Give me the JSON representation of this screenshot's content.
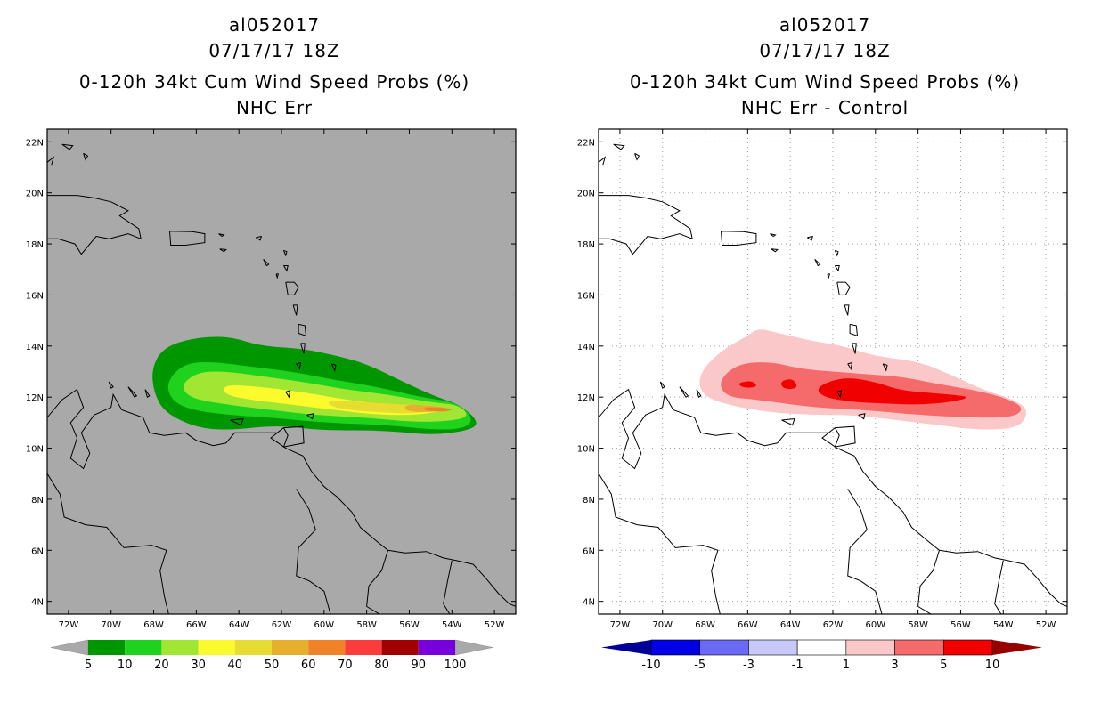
{
  "charts": [
    {
      "id": "left",
      "title_line1": "al052017",
      "title_line2": "07/17/17 18Z",
      "title_line3": "0-120h 34kt Cum Wind Speed Probs (%)",
      "title_line4": "NHC Err",
      "background": "#a9a9a9",
      "gridlines": false
    },
    {
      "id": "right",
      "title_line1": "al052017",
      "title_line2": "07/17/17 18Z",
      "title_line3": "0-120h 34kt Cum Wind Speed Probs (%)",
      "title_line4": "NHC Err - Control",
      "background": "#ffffff",
      "gridlines": true
    }
  ],
  "chart_data": [
    {
      "type": "heatmap",
      "title": "0-120h 34kt Cum Wind Speed Probs (%) NHC Err",
      "xlim": [
        -73,
        -51
      ],
      "ylim": [
        3.5,
        22.5
      ],
      "x_ticks": [
        -72,
        -70,
        -68,
        -66,
        -64,
        -62,
        -60,
        -58,
        -56,
        -54,
        -52
      ],
      "x_tick_labels": [
        "72W",
        "70W",
        "68W",
        "66W",
        "64W",
        "62W",
        "60W",
        "58W",
        "56W",
        "54W",
        "52W"
      ],
      "y_ticks": [
        4,
        6,
        8,
        10,
        12,
        14,
        16,
        18,
        20,
        22
      ],
      "y_tick_labels": [
        "4N",
        "6N",
        "8N",
        "10N",
        "12N",
        "14N",
        "16N",
        "18N",
        "20N",
        "22N"
      ],
      "colorbar": {
        "labels": [
          "5",
          "10",
          "20",
          "30",
          "40",
          "50",
          "60",
          "70",
          "80",
          "90",
          "100"
        ],
        "colors": [
          "#009600",
          "#1ed21e",
          "#a0e632",
          "#fafa2d",
          "#e6dc32",
          "#e6af2d",
          "#f08228",
          "#fa3c3c",
          "#a00000",
          "#7800dc"
        ],
        "extend_color": "#a9a9a9"
      },
      "contours": [
        {
          "level": "5-10",
          "color": "#009600",
          "points": [
            [
              -68.1,
              13.1
            ],
            [
              -67.6,
              13.9
            ],
            [
              -66.3,
              14.3
            ],
            [
              -64.5,
              14.4
            ],
            [
              -63.0,
              14.0
            ],
            [
              -61.0,
              13.9
            ],
            [
              -59.3,
              13.6
            ],
            [
              -58.0,
              13.3
            ],
            [
              -56.3,
              12.6
            ],
            [
              -54.7,
              12.0
            ],
            [
              -53.6,
              11.7
            ],
            [
              -52.7,
              11.0
            ],
            [
              -53.2,
              10.7
            ],
            [
              -54.9,
              10.5
            ],
            [
              -57.2,
              10.7
            ],
            [
              -60.2,
              10.7
            ],
            [
              -62.2,
              10.9
            ],
            [
              -64.5,
              10.7
            ],
            [
              -66.0,
              10.8
            ],
            [
              -67.5,
              11.4
            ],
            [
              -68.0,
              12.2
            ]
          ]
        },
        {
          "level": "10-20",
          "color": "#1ed21e",
          "points": [
            [
              -67.4,
              12.6
            ],
            [
              -66.6,
              13.3
            ],
            [
              -65.4,
              13.4
            ],
            [
              -63.5,
              13.2
            ],
            [
              -61.5,
              13.0
            ],
            [
              -59.7,
              12.7
            ],
            [
              -57.5,
              12.4
            ],
            [
              -55.5,
              12.0
            ],
            [
              -53.8,
              11.8
            ],
            [
              -53.0,
              11.2
            ],
            [
              -53.3,
              10.8
            ],
            [
              -54.5,
              10.7
            ],
            [
              -57.0,
              10.9
            ],
            [
              -60.0,
              11.0
            ],
            [
              -62.5,
              11.2
            ],
            [
              -64.5,
              11.3
            ],
            [
              -66.3,
              11.5
            ],
            [
              -67.2,
              11.9
            ]
          ]
        },
        {
          "level": "20-30",
          "color": "#a0e632",
          "points": [
            [
              -66.6,
              12.6
            ],
            [
              -65.8,
              13.0
            ],
            [
              -64.5,
              13.0
            ],
            [
              -62.8,
              12.8
            ],
            [
              -61.0,
              12.6
            ],
            [
              -59.0,
              12.3
            ],
            [
              -57.0,
              12.1
            ],
            [
              -55.0,
              11.8
            ],
            [
              -53.7,
              11.7
            ],
            [
              -53.2,
              11.3
            ],
            [
              -53.7,
              11.1
            ],
            [
              -55.5,
              11.0
            ],
            [
              -58.0,
              11.2
            ],
            [
              -60.5,
              11.3
            ],
            [
              -62.5,
              11.5
            ],
            [
              -64.5,
              11.7
            ],
            [
              -66.0,
              11.9
            ],
            [
              -66.6,
              12.2
            ]
          ]
        },
        {
          "level": "30-40",
          "color": "#fafa2d",
          "points": [
            [
              -64.7,
              12.5
            ],
            [
              -63.0,
              12.4
            ],
            [
              -61.0,
              12.2
            ],
            [
              -59.0,
              11.9
            ],
            [
              -57.0,
              11.7
            ],
            [
              -55.5,
              11.6
            ],
            [
              -54.0,
              11.55
            ],
            [
              -55.5,
              11.3
            ],
            [
              -57.5,
              11.3
            ],
            [
              -59.5,
              11.5
            ],
            [
              -61.5,
              11.7
            ],
            [
              -63.5,
              11.9
            ],
            [
              -64.7,
              12.1
            ]
          ]
        },
        {
          "level": "40-50",
          "color": "#e6dc32",
          "points": [
            [
              -60.0,
              11.9
            ],
            [
              -58.0,
              11.8
            ],
            [
              -56.0,
              11.7
            ],
            [
              -54.2,
              11.6
            ],
            [
              -55.5,
              11.35
            ],
            [
              -57.5,
              11.4
            ],
            [
              -59.5,
              11.55
            ]
          ]
        },
        {
          "level": "50-60",
          "color": "#e6af2d",
          "points": [
            [
              -56.2,
              11.72
            ],
            [
              -55.0,
              11.66
            ],
            [
              -53.9,
              11.55
            ],
            [
              -55.0,
              11.4
            ],
            [
              -56.2,
              11.45
            ]
          ]
        },
        {
          "level": "60-70",
          "color": "#f08228",
          "points": [
            [
              -55.3,
              11.62
            ],
            [
              -54.3,
              11.58
            ],
            [
              -53.9,
              11.5
            ],
            [
              -54.5,
              11.42
            ],
            [
              -55.3,
              11.48
            ]
          ]
        }
      ]
    },
    {
      "type": "heatmap",
      "title": "0-120h 34kt Cum Wind Speed Probs (%) NHC Err - Control",
      "xlim": [
        -73,
        -51
      ],
      "ylim": [
        3.5,
        22.5
      ],
      "x_ticks": [
        -72,
        -70,
        -68,
        -66,
        -64,
        -62,
        -60,
        -58,
        -56,
        -54,
        -52
      ],
      "x_tick_labels": [
        "72W",
        "70W",
        "68W",
        "66W",
        "64W",
        "62W",
        "60W",
        "58W",
        "56W",
        "54W",
        "52W"
      ],
      "y_ticks": [
        4,
        6,
        8,
        10,
        12,
        14,
        16,
        18,
        20,
        22
      ],
      "y_tick_labels": [
        "4N",
        "6N",
        "8N",
        "10N",
        "12N",
        "14N",
        "16N",
        "18N",
        "20N",
        "22N"
      ],
      "colorbar": {
        "labels": [
          "-10",
          "-5",
          "-3",
          "-1",
          "1",
          "3",
          "5",
          "10"
        ],
        "colors": [
          "#0000e6",
          "#6a6af5",
          "#c8c8fa",
          "#ffffff",
          "#fac8c8",
          "#f56a6a",
          "#f00000"
        ],
        "extend_low_color": "#000096",
        "extend_high_color": "#960000"
      },
      "contours": [
        {
          "level": "1-3",
          "color": "#fac8c8",
          "points": [
            [
              -68.3,
              12.9
            ],
            [
              -67.3,
              13.8
            ],
            [
              -66.0,
              14.4
            ],
            [
              -65.5,
              14.7
            ],
            [
              -64.5,
              14.5
            ],
            [
              -63.0,
              14.2
            ],
            [
              -61.5,
              14.0
            ],
            [
              -60.0,
              13.6
            ],
            [
              -58.0,
              13.4
            ],
            [
              -56.5,
              12.9
            ],
            [
              -55.0,
              12.3
            ],
            [
              -53.5,
              11.9
            ],
            [
              -52.8,
              11.5
            ],
            [
              -53.2,
              10.8
            ],
            [
              -55.0,
              10.7
            ],
            [
              -57.0,
              10.9
            ],
            [
              -59.0,
              11.1
            ],
            [
              -61.0,
              11.3
            ],
            [
              -63.0,
              11.3
            ],
            [
              -65.0,
              11.4
            ],
            [
              -67.0,
              11.7
            ],
            [
              -68.2,
              12.1
            ]
          ]
        },
        {
          "level": "3-5",
          "color": "#f56a6a",
          "points": [
            [
              -67.4,
              12.6
            ],
            [
              -66.5,
              13.3
            ],
            [
              -65.0,
              13.4
            ],
            [
              -63.5,
              13.1
            ],
            [
              -62.0,
              13.0
            ],
            [
              -60.5,
              12.9
            ],
            [
              -58.8,
              12.8
            ],
            [
              -57.0,
              12.5
            ],
            [
              -55.5,
              12.3
            ],
            [
              -54.0,
              12.0
            ],
            [
              -53.0,
              11.6
            ],
            [
              -53.5,
              11.2
            ],
            [
              -55.5,
              11.2
            ],
            [
              -58.0,
              11.3
            ],
            [
              -60.5,
              11.5
            ],
            [
              -63.0,
              11.6
            ],
            [
              -65.5,
              11.9
            ],
            [
              -67.0,
              12.0
            ]
          ]
        },
        {
          "level": "5-10",
          "color": "#f00000",
          "points": [
            [
              -62.8,
              12.4
            ],
            [
              -61.5,
              12.8
            ],
            [
              -60.0,
              12.6
            ],
            [
              -59.0,
              12.3
            ],
            [
              -58.0,
              12.2
            ],
            [
              -56.5,
              12.1
            ],
            [
              -55.5,
              12.0
            ],
            [
              -56.5,
              11.8
            ],
            [
              -58.0,
              11.7
            ],
            [
              -59.5,
              11.75
            ],
            [
              -61.0,
              11.8
            ],
            [
              -62.5,
              12.0
            ]
          ]
        },
        {
          "level": "5-10",
          "color": "#f00000",
          "points": [
            [
              -66.5,
              12.55
            ],
            [
              -65.8,
              12.65
            ],
            [
              -65.5,
              12.4
            ],
            [
              -66.2,
              12.35
            ]
          ]
        },
        {
          "level": "5-10",
          "color": "#f00000",
          "points": [
            [
              -64.5,
              12.6
            ],
            [
              -63.9,
              12.75
            ],
            [
              -63.6,
              12.35
            ],
            [
              -64.3,
              12.3
            ]
          ]
        }
      ]
    }
  ]
}
